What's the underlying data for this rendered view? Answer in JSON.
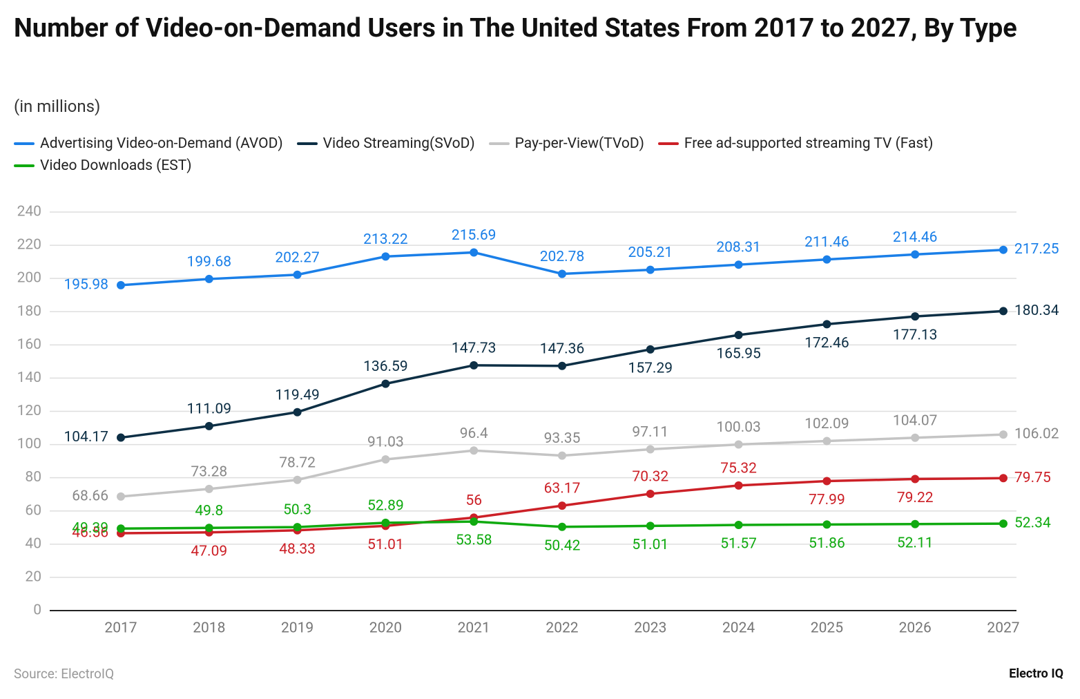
{
  "chart_data": {
    "type": "line",
    "title": "Number of Video-on-Demand Users in The United States From 2017 to 2027, By Type",
    "subtitle": "(in millions)",
    "source": "Source: ElectroIQ",
    "brand": "Electro IQ",
    "categories": [
      "2017",
      "2018",
      "2019",
      "2020",
      "2021",
      "2022",
      "2023",
      "2024",
      "2025",
      "2026",
      "2027"
    ],
    "series": [
      {
        "name": "Advertising Video-on-Demand (AVOD)",
        "color": "#1a7fe8",
        "values": [
          195.98,
          199.68,
          202.27,
          213.22,
          215.69,
          202.78,
          205.21,
          208.31,
          211.46,
          214.46,
          217.25
        ]
      },
      {
        "name": "Video Streaming(SVoD)",
        "color": "#0d2f45",
        "values": [
          104.17,
          111.09,
          119.49,
          136.59,
          147.73,
          147.36,
          157.29,
          165.95,
          172.46,
          177.13,
          180.34
        ]
      },
      {
        "name": "Pay-per-View(TVoD)",
        "color": "#c4c4c4",
        "values": [
          68.66,
          73.28,
          78.72,
          91.03,
          96.4,
          93.35,
          97.11,
          100.03,
          102.09,
          104.07,
          106.02
        ]
      },
      {
        "name": "Free ad-supported streaming TV (Fast)",
        "color": "#cc2027",
        "values": [
          46.56,
          47.09,
          48.33,
          51.01,
          56,
          63.17,
          70.32,
          75.32,
          77.99,
          79.22,
          79.75
        ]
      },
      {
        "name": "Video Downloads (EST)",
        "color": "#10aa10",
        "values": [
          49.39,
          49.8,
          50.3,
          52.89,
          53.58,
          50.42,
          51.01,
          51.57,
          51.86,
          52.11,
          52.34
        ]
      }
    ],
    "ylim": [
      0,
      240
    ],
    "yticks": [
      0,
      20,
      40,
      60,
      80,
      100,
      120,
      140,
      160,
      180,
      200,
      220,
      240
    ],
    "grid": true
  }
}
